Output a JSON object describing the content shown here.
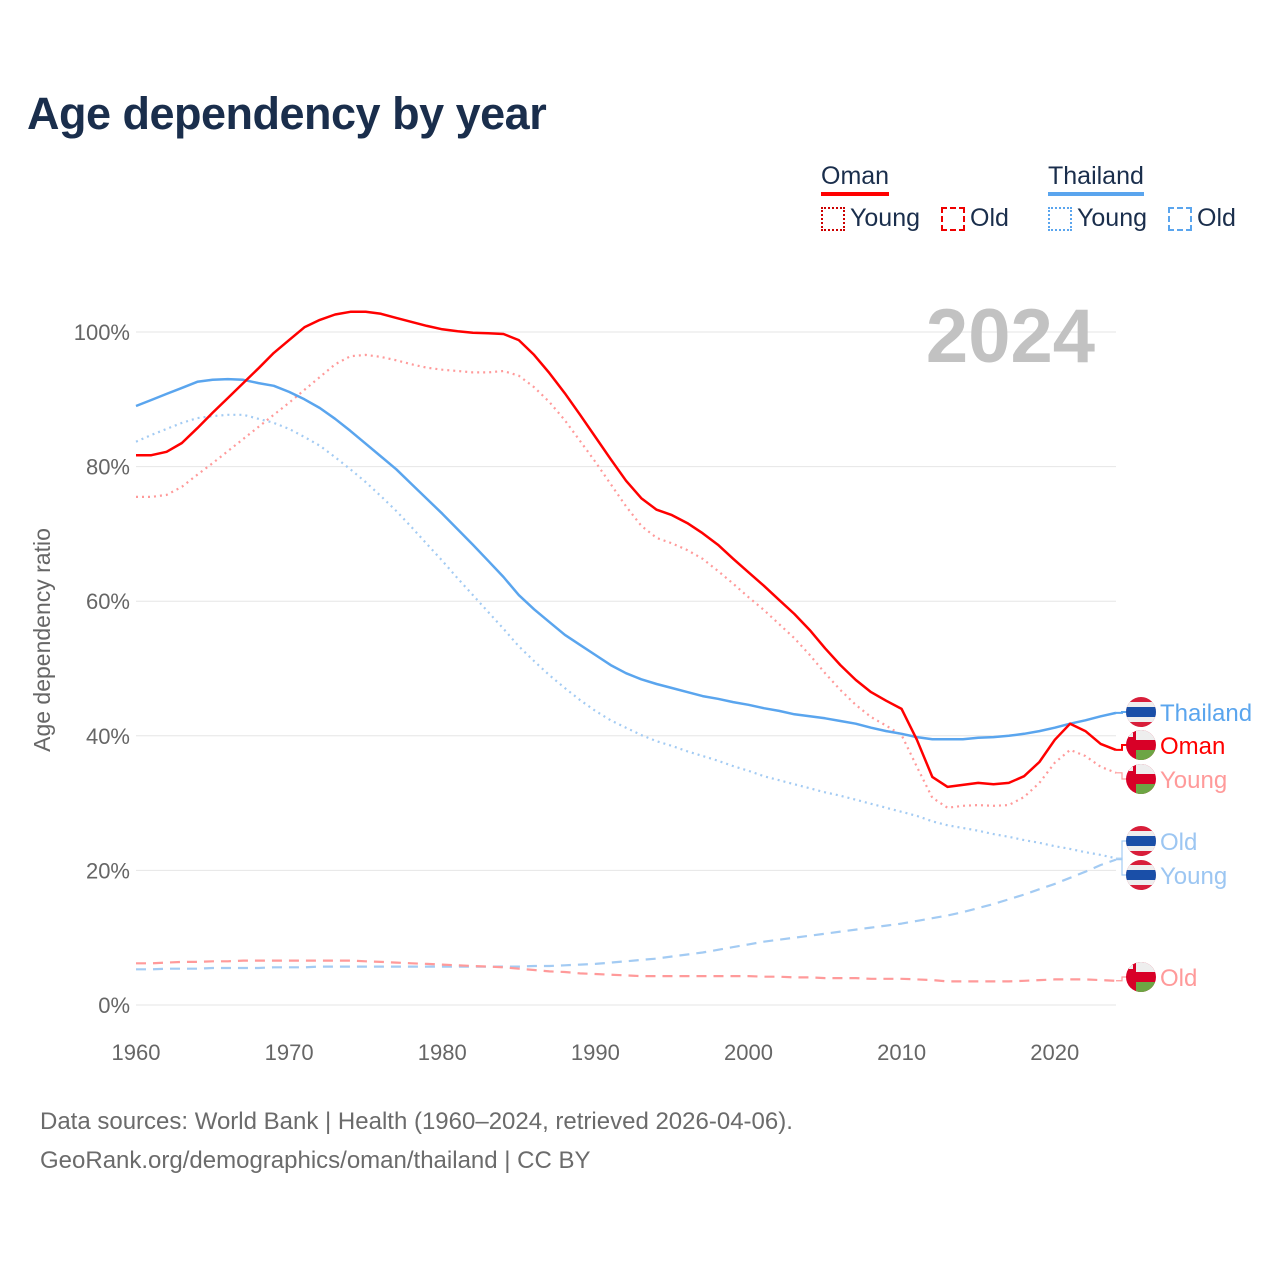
{
  "title": "Age dependency by year",
  "legend": {
    "groups": [
      {
        "name": "Oman",
        "color": "#ff0000",
        "items": [
          "Young",
          "Old"
        ]
      },
      {
        "name": "Thailand",
        "color": "#5aa5ee",
        "items": [
          "Young",
          "Old"
        ]
      }
    ]
  },
  "year_watermark": "2024",
  "source_line1": "Data sources: World Bank | Health (1960–2024, retrieved 2026-04-06).",
  "source_line2": "GeoRank.org/demographics/oman/thailand | CC BY",
  "chart_data": {
    "type": "line",
    "title": "Age dependency by year",
    "xlabel": "",
    "ylabel": "Age dependency ratio",
    "xlim": [
      1960,
      2024
    ],
    "ylim": [
      0,
      100
    ],
    "x_ticks": [
      "1960",
      "1970",
      "1980",
      "1990",
      "2000",
      "2010",
      "2020"
    ],
    "y_ticks": [
      "0%",
      "20%",
      "40%",
      "60%",
      "80%",
      "100%"
    ],
    "grid": true,
    "x_start": 1960,
    "series": [
      {
        "name": "Oman",
        "label": "Oman",
        "country": "Oman",
        "style": "solid",
        "color": "#ff0000",
        "values": [
          81.7,
          81.7,
          82.2,
          83.5,
          85.7,
          88,
          90.2,
          92.4,
          94.6,
          96.9,
          98.8,
          100.7,
          101.8,
          102.6,
          103,
          103,
          102.7,
          102.1,
          101.5,
          100.9,
          100.4,
          100.1,
          99.9,
          99.8,
          99.7,
          98.8,
          96.6,
          93.9,
          90.9,
          87.7,
          84.4,
          81.1,
          77.9,
          75.3,
          73.6,
          72.8,
          71.6,
          70.1,
          68.4,
          66.3,
          64.3,
          62.3,
          60.2,
          58.1,
          55.7,
          53,
          50.5,
          48.3,
          46.5,
          45.2,
          44,
          39.4,
          33.9,
          32.4,
          32.7,
          33,
          32.8,
          33,
          34,
          36.1,
          39.4,
          41.8,
          40.7,
          38.8,
          37.9
        ]
      },
      {
        "name": "Oman Young",
        "label": "Young",
        "country": "Oman",
        "style": "dotted",
        "color": "#ff9a9a",
        "values": [
          75.5,
          75.5,
          75.8,
          77,
          78.8,
          80.5,
          82.3,
          84.1,
          85.9,
          87.7,
          89.5,
          91.4,
          93.3,
          95.2,
          96.4,
          96.6,
          96.3,
          95.8,
          95.2,
          94.7,
          94.4,
          94.2,
          94,
          94,
          94.2,
          93.5,
          91.8,
          89.6,
          86.9,
          83.8,
          80.7,
          77.4,
          74.1,
          71.2,
          69.4,
          68.6,
          67.6,
          66.3,
          64.5,
          62.6,
          60.6,
          58.7,
          56.6,
          54.5,
          52,
          49.3,
          46.8,
          44.6,
          42.8,
          41.5,
          40.1,
          35.4,
          30.8,
          29.3,
          29.6,
          29.7,
          29.6,
          29.7,
          30.9,
          33,
          36,
          37.9,
          37,
          35.4,
          34.5
        ]
      },
      {
        "name": "Oman Old",
        "label": "Old",
        "country": "Oman",
        "style": "dashed",
        "color": "#ff9a9a",
        "values": [
          6.2,
          6.2,
          6.3,
          6.4,
          6.4,
          6.5,
          6.5,
          6.6,
          6.6,
          6.6,
          6.6,
          6.6,
          6.6,
          6.6,
          6.6,
          6.5,
          6.4,
          6.3,
          6.2,
          6.1,
          6.0,
          5.9,
          5.8,
          5.7,
          5.6,
          5.4,
          5.2,
          5.0,
          4.9,
          4.7,
          4.6,
          4.5,
          4.4,
          4.3,
          4.3,
          4.3,
          4.3,
          4.3,
          4.3,
          4.3,
          4.3,
          4.2,
          4.2,
          4.1,
          4.1,
          4.0,
          4.0,
          4.0,
          3.9,
          3.9,
          3.9,
          3.8,
          3.7,
          3.5,
          3.5,
          3.5,
          3.5,
          3.5,
          3.6,
          3.7,
          3.8,
          3.8,
          3.8,
          3.7,
          3.6
        ]
      },
      {
        "name": "Thailand",
        "label": "Thailand",
        "country": "Thailand",
        "style": "solid",
        "color": "#5aa5ee",
        "values": [
          89,
          89.9,
          90.8,
          91.7,
          92.6,
          92.9,
          93,
          92.9,
          92.4,
          92,
          91.1,
          90,
          88.7,
          87.1,
          85.3,
          83.4,
          81.5,
          79.6,
          77.4,
          75.2,
          73,
          70.7,
          68.4,
          66,
          63.6,
          60.9,
          58.8,
          56.9,
          55,
          53.5,
          52,
          50.5,
          49.3,
          48.4,
          47.7,
          47.1,
          46.5,
          45.9,
          45.5,
          45,
          44.6,
          44.1,
          43.7,
          43.2,
          42.9,
          42.6,
          42.2,
          41.8,
          41.2,
          40.7,
          40.3,
          39.8,
          39.5,
          39.5,
          39.5,
          39.7,
          39.8,
          40,
          40.3,
          40.7,
          41.2,
          41.8,
          42.3,
          42.9,
          43.4
        ]
      },
      {
        "name": "Thailand Young",
        "label": "Young",
        "country": "Thailand",
        "style": "dotted",
        "color": "#a3cbf3",
        "values": [
          83.7,
          84.7,
          85.6,
          86.5,
          87.2,
          87.5,
          87.7,
          87.7,
          87.1,
          86.5,
          85.6,
          84.4,
          83.1,
          81.4,
          79.6,
          77.7,
          75.6,
          73.4,
          71,
          68.5,
          66,
          63.4,
          60.9,
          58.4,
          55.9,
          53.3,
          51.1,
          49,
          47.1,
          45.3,
          43.7,
          42.3,
          41.2,
          40.1,
          39.2,
          38.5,
          37.7,
          37,
          36.3,
          35.5,
          34.8,
          34,
          33.4,
          32.8,
          32.2,
          31.6,
          31.1,
          30.5,
          29.9,
          29.3,
          28.7,
          28.1,
          27.3,
          26.7,
          26.3,
          25.9,
          25.4,
          25,
          24.5,
          24.1,
          23.6,
          23.2,
          22.7,
          22.3,
          21.8
        ]
      },
      {
        "name": "Thailand Old",
        "label": "Old",
        "country": "Thailand",
        "style": "dashed",
        "color": "#a3cbf3",
        "values": [
          5.3,
          5.3,
          5.4,
          5.4,
          5.4,
          5.5,
          5.5,
          5.5,
          5.5,
          5.6,
          5.6,
          5.6,
          5.7,
          5.7,
          5.7,
          5.7,
          5.7,
          5.7,
          5.7,
          5.7,
          5.7,
          5.7,
          5.7,
          5.7,
          5.7,
          5.7,
          5.8,
          5.8,
          5.9,
          6.0,
          6.1,
          6.3,
          6.5,
          6.7,
          6.9,
          7.2,
          7.5,
          7.8,
          8.2,
          8.6,
          9.0,
          9.4,
          9.7,
          10.0,
          10.3,
          10.6,
          10.9,
          11.2,
          11.5,
          11.8,
          12.1,
          12.5,
          12.9,
          13.3,
          13.8,
          14.4,
          15.0,
          15.7,
          16.4,
          17.2,
          18.0,
          18.9,
          19.8,
          20.8,
          21.6
        ]
      }
    ],
    "end_labels": [
      "Thailand",
      "Oman",
      "Young",
      "Old",
      "Young",
      "Old"
    ]
  }
}
